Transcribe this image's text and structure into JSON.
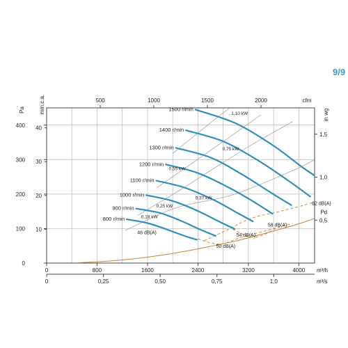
{
  "page_badge": "9/9",
  "chart_data": {
    "type": "line",
    "colors": {
      "curve": "#2e8fbf",
      "sound": "#c98236",
      "grid": "#b8b8b8",
      "axis": "#444444",
      "text": "#222222"
    },
    "axes": {
      "bottom_m3h": {
        "unit": "m³/h",
        "ticks": [
          "0",
          "800",
          "1600",
          "2400",
          "3200",
          "4000"
        ],
        "values": [
          0,
          800,
          1600,
          2400,
          3200,
          4000
        ],
        "range": [
          0,
          4250
        ]
      },
      "bottom_m3s": {
        "unit": "m³/s",
        "ticks": [
          "0",
          "0,25",
          "0,50",
          "0,75",
          "1,0"
        ],
        "values": [
          0,
          0.25,
          0.5,
          0.75,
          1.0
        ],
        "range": [
          0,
          1.18
        ]
      },
      "top_cfm": {
        "unit": "cfm",
        "ticks": [
          "500",
          "1000",
          "1500",
          "2000"
        ],
        "values": [
          500,
          1000,
          1500,
          2000
        ],
        "range": [
          0,
          2500
        ]
      },
      "left_pa": {
        "unit": "Pa",
        "ticks": [
          "0",
          "100",
          "200",
          "300",
          "400"
        ],
        "values": [
          0,
          100,
          200,
          300,
          400
        ],
        "range": [
          0,
          450
        ]
      },
      "left_mmca": {
        "unit": "mm.c.a.",
        "ticks": [
          "10",
          "20",
          "30",
          "40"
        ],
        "values": [
          10,
          20,
          30,
          40
        ],
        "range": [
          0,
          45.9
        ]
      },
      "right_inwg": {
        "unit": "in wg",
        "ticks": [
          "0,5",
          "1,0",
          "1,5"
        ],
        "values": [
          0.5,
          1.0,
          1.5
        ],
        "range": [
          0,
          1.806
        ]
      }
    },
    "grid": true,
    "series": [
      {
        "name": "800 r/min",
        "points": [
          [
            1270,
            127
          ],
          [
            1600,
            116
          ],
          [
            1900,
            98
          ],
          [
            2200,
            78
          ],
          [
            2380,
            68
          ]
        ]
      },
      {
        "name": "900 r/min",
        "points": [
          [
            1420,
            158
          ],
          [
            1800,
            145
          ],
          [
            2150,
            121
          ],
          [
            2450,
            96
          ],
          [
            2680,
            79
          ]
        ]
      },
      {
        "name": "1000 r/min",
        "points": [
          [
            1580,
            197
          ],
          [
            2000,
            180
          ],
          [
            2400,
            151
          ],
          [
            2750,
            119
          ],
          [
            2980,
            99
          ]
        ]
      },
      {
        "name": "1100 r/min",
        "points": [
          [
            1740,
            239
          ],
          [
            2200,
            218
          ],
          [
            2650,
            183
          ],
          [
            3000,
            148
          ],
          [
            3270,
            121
          ]
        ]
      },
      {
        "name": "1200 r/min",
        "points": [
          [
            1890,
            286
          ],
          [
            2400,
            261
          ],
          [
            2900,
            218
          ],
          [
            3300,
            176
          ],
          [
            3580,
            143
          ]
        ]
      },
      {
        "name": "1300 r/min",
        "points": [
          [
            2050,
            334
          ],
          [
            2600,
            306
          ],
          [
            3100,
            257
          ],
          [
            3550,
            205
          ],
          [
            3880,
            168
          ]
        ]
      },
      {
        "name": "1400 r/min",
        "points": [
          [
            2210,
            385
          ],
          [
            2800,
            353
          ],
          [
            3350,
            298
          ],
          [
            3850,
            237
          ],
          [
            4180,
            193
          ]
        ]
      },
      {
        "name": "1500 r/min",
        "points": [
          [
            2360,
            445
          ],
          [
            3000,
            405
          ],
          [
            3600,
            340
          ],
          [
            4100,
            272
          ],
          [
            4500,
            225
          ]
        ]
      }
    ],
    "power_labels": [
      {
        "label": "0,18 kW",
        "point": [
          1630,
          130
        ]
      },
      {
        "label": "0,25 kW",
        "point": [
          1870,
          161
        ]
      },
      {
        "label": "0,37 kW",
        "point": [
          2490,
          185
        ]
      },
      {
        "label": "0,55 kW",
        "point": [
          2070,
          269
        ]
      },
      {
        "label": "0,75 kW",
        "point": [
          2920,
          327
        ]
      },
      {
        "label": "1,10 kW",
        "point": [
          3060,
          430
        ]
      }
    ],
    "sound_labels": [
      {
        "label": "46 dB(A)",
        "point": [
          1590,
          84
        ]
      },
      {
        "label": "50 dB(A)",
        "point": [
          2840,
          44
        ]
      },
      {
        "label": "54 dB(A)",
        "point": [
          3160,
          77
        ]
      },
      {
        "label": "58 dB(A)",
        "point": [
          3660,
          106
        ]
      },
      {
        "label": "62 dB(A)",
        "point": [
          4360,
          168
        ]
      }
    ],
    "pd": {
      "label": "Pd",
      "points": [
        [
          500,
          1
        ],
        [
          1000,
          6
        ],
        [
          1500,
          15
        ],
        [
          2000,
          28
        ],
        [
          2500,
          45
        ],
        [
          3000,
          64
        ],
        [
          3500,
          88
        ],
        [
          4000,
          114
        ],
        [
          4500,
          145
        ]
      ],
      "label_point": [
        4450,
        142
      ]
    },
    "system_lines": [
      [
        [
          1250,
          95
        ],
        [
          2050,
          160
        ],
        [
          2950,
          198
        ],
        [
          3900,
          268
        ],
        [
          4250,
          300
        ]
      ],
      [
        [
          1450,
          139
        ],
        [
          2100,
          210
        ],
        [
          2700,
          280
        ],
        [
          3300,
          348
        ],
        [
          3900,
          410
        ]
      ],
      [
        [
          1750,
          219
        ],
        [
          2350,
          295
        ],
        [
          2900,
          365
        ],
        [
          3400,
          430
        ]
      ],
      [
        [
          2000,
          318
        ],
        [
          2500,
          392
        ],
        [
          2900,
          450
        ]
      ]
    ],
    "sound_contours": [
      [
        [
          2500,
          65
        ],
        [
          2850,
          95
        ],
        [
          3250,
          130
        ],
        [
          3700,
          150
        ],
        [
          4200,
          175
        ],
        [
          4500,
          205
        ]
      ],
      [
        [
          2400,
          70
        ],
        [
          2750,
          55
        ],
        [
          3100,
          75
        ],
        [
          3500,
          95
        ],
        [
          3900,
          115
        ]
      ],
      [
        [
          2950,
          98
        ],
        [
          3300,
          75
        ],
        [
          3700,
          106
        ]
      ]
    ]
  }
}
